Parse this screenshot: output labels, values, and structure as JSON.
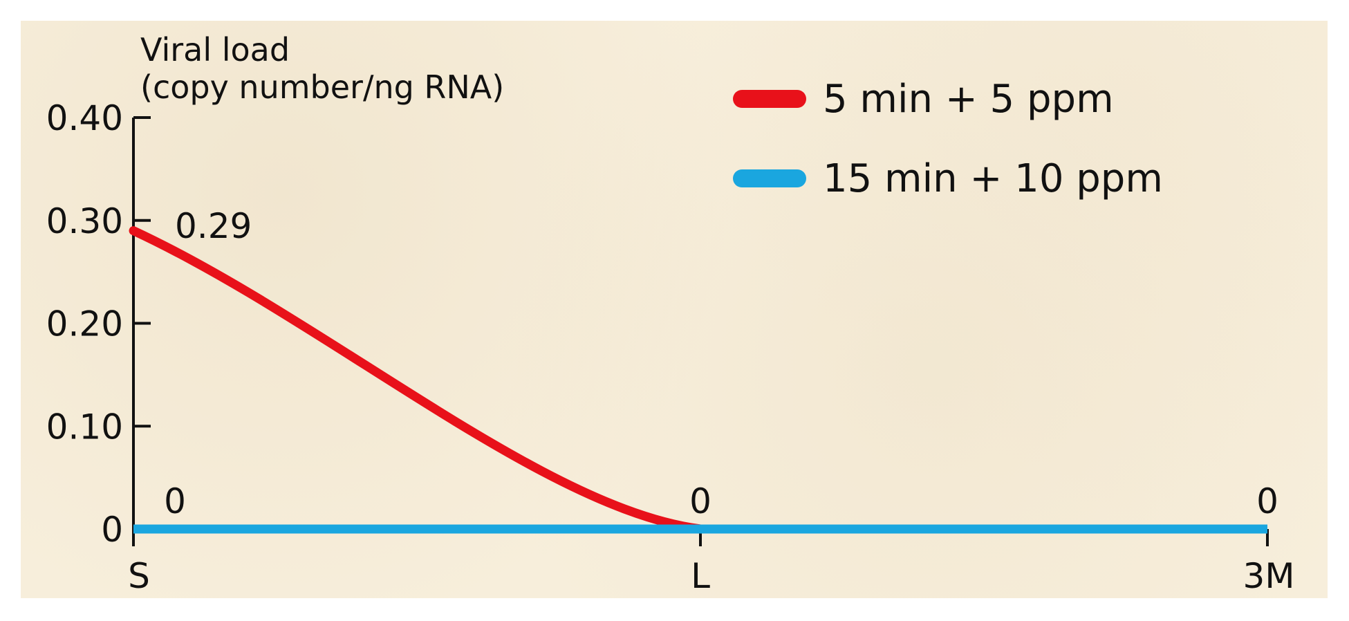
{
  "chart_data": {
    "type": "line",
    "ylabel_line1": "Viral load",
    "ylabel_line2": "(copy number/ng RNA)",
    "categories": [
      "S",
      "L",
      "3M"
    ],
    "yticks": [
      "0",
      "0.10",
      "0.20",
      "0.30",
      "0.40"
    ],
    "ytick_values": [
      0,
      0.1,
      0.2,
      0.3,
      0.4
    ],
    "ylim": [
      0,
      0.4
    ],
    "grid": false,
    "legend_position": "top-right",
    "series": [
      {
        "name": "5 min + 5 ppm",
        "values": [
          0.29,
          0,
          null
        ],
        "color": "#e8111a"
      },
      {
        "name": "15 min + 10 ppm",
        "values": [
          0,
          0,
          0
        ],
        "color": "#1aa6df"
      }
    ],
    "annotations": [
      {
        "text": "0.29",
        "x": "S",
        "y": 0.29
      },
      {
        "text": "0",
        "x": "S",
        "y": 0
      },
      {
        "text": "0",
        "x": "L",
        "y": 0
      },
      {
        "text": "0",
        "x": "3M",
        "y": 0
      }
    ]
  }
}
